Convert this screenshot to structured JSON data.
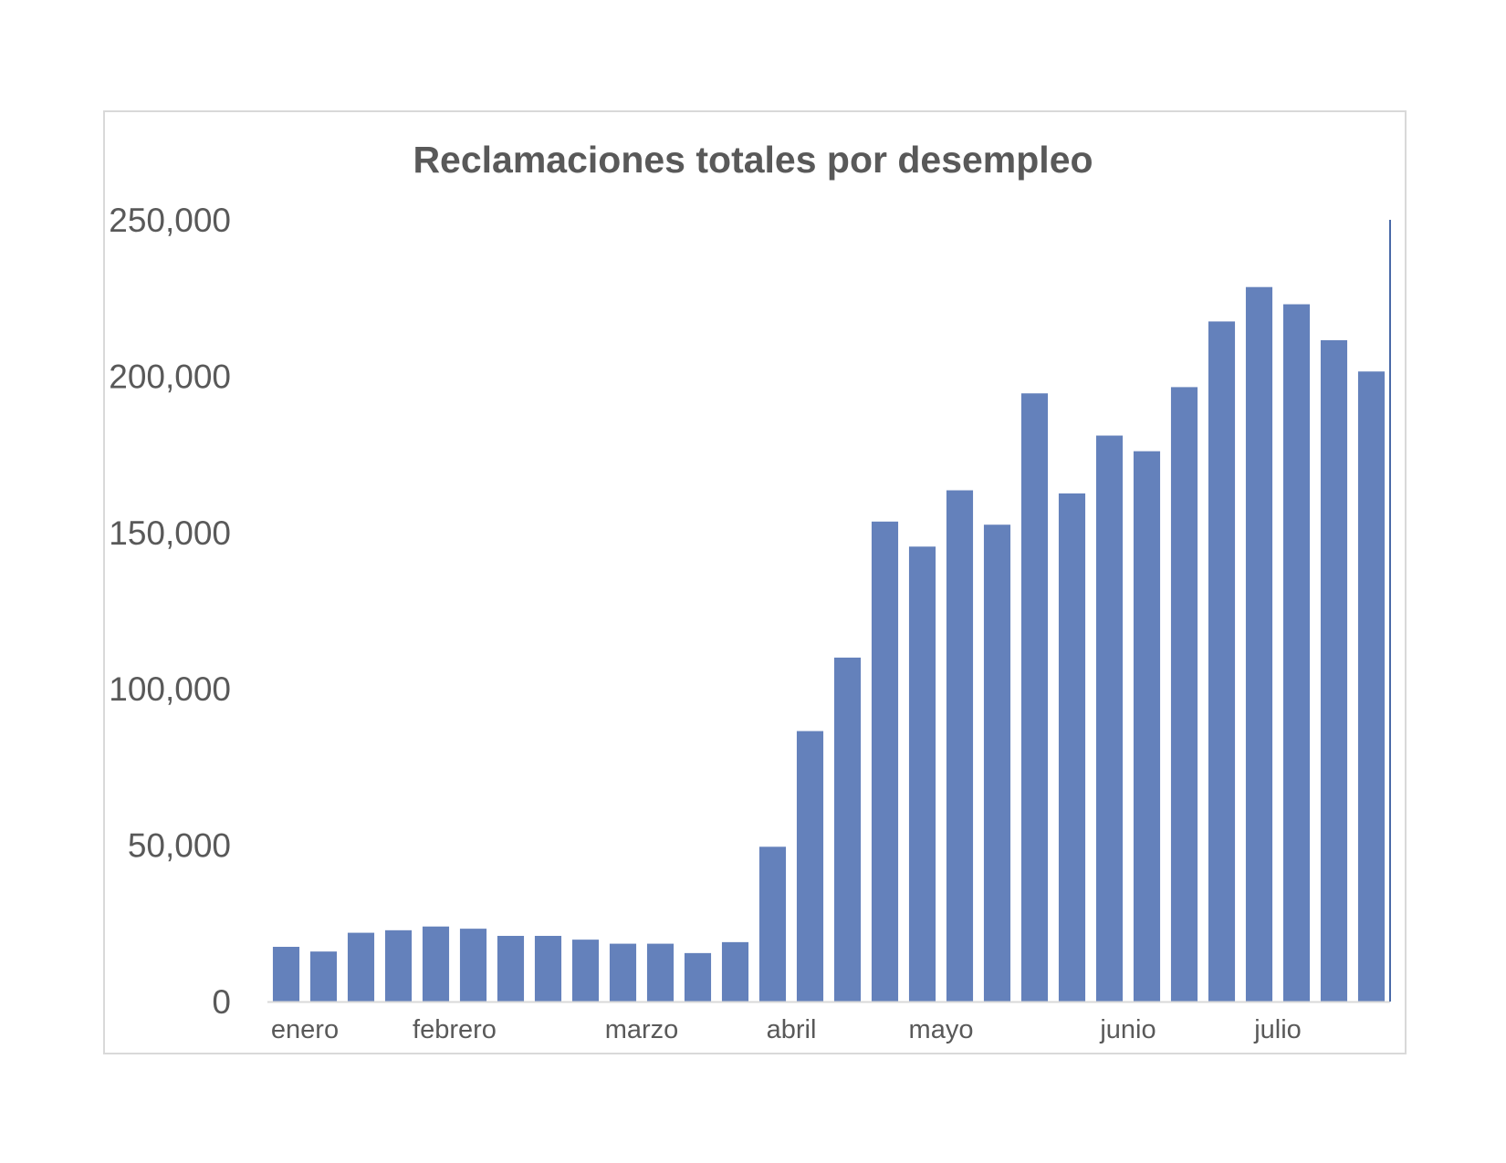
{
  "chart_data": {
    "type": "bar",
    "title": "Reclamaciones totales por desempleo",
    "xlabel": "",
    "ylabel": "",
    "ylim": [
      0,
      250000
    ],
    "y_ticks": [
      "0",
      "50,000",
      "100,000",
      "150,000",
      "200,000",
      "250,000"
    ],
    "y_tick_values": [
      0,
      50000,
      100000,
      150000,
      200000,
      250000
    ],
    "month_labels": [
      {
        "label": "enero",
        "bar_index": 0
      },
      {
        "label": "febrero",
        "bar_index": 4
      },
      {
        "label": "marzo",
        "bar_index": 9
      },
      {
        "label": "abril",
        "bar_index": 13
      },
      {
        "label": "mayo",
        "bar_index": 17
      },
      {
        "label": "junio",
        "bar_index": 22
      },
      {
        "label": "julio",
        "bar_index": 26
      }
    ],
    "values": [
      17500,
      16000,
      22000,
      22800,
      24000,
      23300,
      21000,
      21000,
      19800,
      18500,
      18500,
      15500,
      19000,
      49500,
      86500,
      110000,
      153500,
      145500,
      163500,
      152500,
      194500,
      162500,
      181000,
      176000,
      196500,
      217500,
      228500,
      223000,
      211500,
      201500
    ],
    "grid": false,
    "legend": "none",
    "bar_color": "#6481BB",
    "axis_color": "#d9d9d9",
    "right_line_color": "#4a6aa8"
  }
}
